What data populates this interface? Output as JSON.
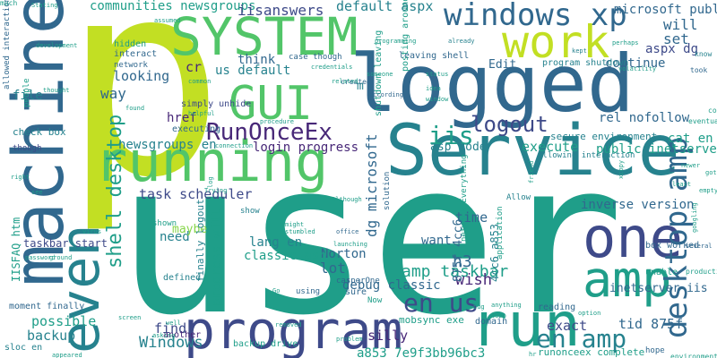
{
  "palette": {
    "background": "#ffffff",
    "yellow_green": "#c2df23",
    "green": "#52c569",
    "light_green": "#86d549",
    "teal": "#1f9e89",
    "teal_dark": "#26828e",
    "blue": "#31688e",
    "blue_dark": "#3e4a89",
    "indigo": "#482878",
    "dark_purple": "#440154"
  },
  "words": [
    "p",
    "user",
    "Service",
    "logged",
    "machine",
    "running",
    "program",
    "run",
    "SYSTEM",
    "windows xp",
    "work",
    "GUI",
    "even",
    "one",
    "amp",
    "desktop amp",
    "RunOnceEx",
    "logout",
    "en us",
    "en amp",
    "iis",
    "communities newsgroups",
    "iisanswers",
    "default aspx",
    "microsoft public",
    "shell desktop",
    "task scheduler",
    "Windows",
    "amp taskbar",
    "dg microsoft",
    "aspx dg",
    "will",
    "set",
    "continue",
    "cr",
    "us default",
    "think",
    "looking",
    "way",
    "href",
    "rel nofollow",
    "cat en",
    "newsgroups en",
    "login progress",
    "asp code",
    "execute",
    "public inetserver",
    "inverse version",
    "time",
    "need",
    "Norton",
    "lot",
    "want",
    "h3",
    "wish",
    "lang en",
    "classic asp",
    "progress will",
    "debug classic",
    "find",
    "silly",
    "possible",
    "backup",
    "exact",
    "tid 875f",
    "a853 7e9f3bb96bc3",
    "inetserver iis",
    "875f 4cc6",
    "4cc6 a853",
    "Edit",
    "program shutdown",
    "secure environment",
    "file",
    "IISFAQ htm",
    "taskbar start",
    "check box",
    "moment finally",
    "sloc en",
    "mobsync exe",
    "runonceex complete",
    "backup drive",
    "maybe",
    "hidden",
    "interact",
    "network",
    "simply unhide",
    "executing",
    "shutdown leaving",
    "leaving shell",
    "case though",
    "m",
    "allowed interaction",
    "box worked",
    "people",
    "finally logout",
    "another",
    "defined",
    "solution",
    "allowing interaction",
    "network Everything",
    "Allow",
    "application",
    "casperOne",
    "domain",
    "reading",
    "sure",
    "using",
    "shown",
    "show",
    "Now",
    "assumed",
    "Stating",
    "development",
    "programming",
    "already",
    "idea",
    "kept",
    "perhaps",
    "volatility",
    "know",
    "empty",
    "least",
    "xcopy",
    "several",
    "code",
    "got",
    "posting around",
    "created",
    "according",
    "someone",
    "credentials",
    "common",
    "thought",
    "found",
    "helpful",
    "procedure",
    "connection",
    "related",
    "though",
    "see",
    "Trying",
    "window",
    "status",
    "friend",
    "option",
    "loop",
    "bug",
    "office",
    "launching",
    "problem",
    "might",
    "stumbled",
    "log",
    "virus",
    "hr",
    "production",
    "googling",
    "screen",
    "asking",
    "well",
    "appeared",
    "password",
    "ground",
    "took",
    "eventually",
    "Although",
    "newer",
    "Go",
    "removed",
    "right",
    "unable",
    "environment",
    "hope",
    "anything",
    "much"
  ]
}
